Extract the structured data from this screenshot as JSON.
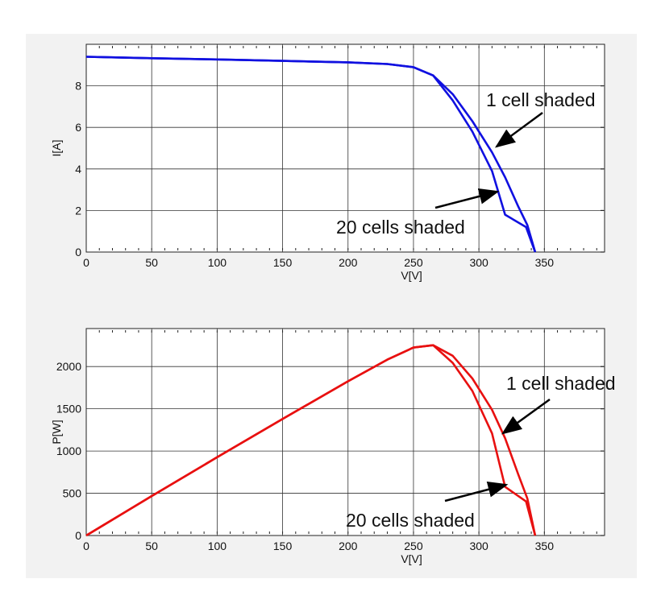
{
  "chart_data": [
    {
      "type": "line",
      "xlabel": "V[V]",
      "ylabel": "I[A]",
      "xlim": [
        0,
        396
      ],
      "ylim": [
        0,
        10
      ],
      "xticks": [
        0,
        50,
        100,
        150,
        200,
        250,
        300,
        350
      ],
      "yticks": [
        0,
        2,
        4,
        6,
        8
      ],
      "grid": true,
      "color": "#1010e0",
      "series": [
        {
          "name": "1 cell shaded",
          "x": [
            0,
            50,
            100,
            150,
            200,
            230,
            250,
            265,
            280,
            295,
            310,
            320,
            330,
            337,
            343
          ],
          "y": [
            9.4,
            9.33,
            9.27,
            9.2,
            9.13,
            9.05,
            8.9,
            8.5,
            7.6,
            6.3,
            4.8,
            3.6,
            2.2,
            1.3,
            0
          ]
        },
        {
          "name": "20 cells shaded",
          "x": [
            0,
            50,
            100,
            150,
            200,
            230,
            250,
            265,
            280,
            295,
            310,
            320,
            336,
            343
          ],
          "y": [
            9.4,
            9.33,
            9.27,
            9.2,
            9.13,
            9.05,
            8.9,
            8.5,
            7.3,
            5.8,
            3.9,
            1.8,
            1.2,
            0
          ]
        }
      ],
      "annotations": [
        {
          "text": "1 cell shaded",
          "target": [
            310,
            4.8
          ]
        },
        {
          "text": "20 cells shaded",
          "target": [
            314,
            2.8
          ]
        }
      ]
    },
    {
      "type": "line",
      "xlabel": "V[V]",
      "ylabel": "P[W]",
      "xlim": [
        0,
        396
      ],
      "ylim": [
        0,
        2450
      ],
      "xticks": [
        0,
        50,
        100,
        150,
        200,
        250,
        300,
        350
      ],
      "yticks": [
        0,
        500,
        1000,
        1500,
        2000
      ],
      "grid": true,
      "color": "#e81010",
      "series": [
        {
          "name": "1 cell shaded",
          "x": [
            0,
            50,
            100,
            150,
            200,
            230,
            250,
            265,
            280,
            295,
            310,
            320,
            330,
            337,
            343
          ],
          "y": [
            0,
            467,
            927,
            1380,
            1826,
            2082,
            2225,
            2253,
            2128,
            1859,
            1488,
            1152,
            726,
            438,
            0
          ]
        },
        {
          "name": "20 cells shaded",
          "x": [
            0,
            50,
            100,
            150,
            200,
            230,
            250,
            265,
            280,
            295,
            310,
            320,
            336,
            343
          ],
          "y": [
            0,
            467,
            927,
            1380,
            1826,
            2082,
            2225,
            2253,
            2044,
            1711,
            1209,
            576,
            403,
            0
          ]
        }
      ],
      "annotations": [
        {
          "text": "1 cell shaded",
          "target": [
            318,
            1200
          ]
        },
        {
          "text": "20 cells shaded",
          "target": [
            320,
            600
          ]
        }
      ]
    }
  ]
}
